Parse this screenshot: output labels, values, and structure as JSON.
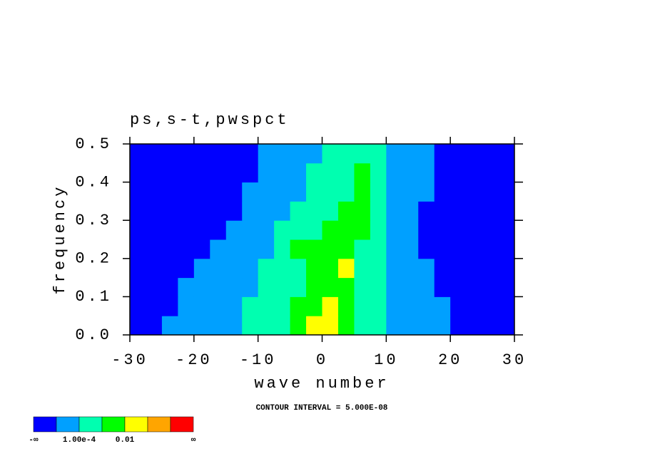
{
  "chart_data": {
    "type": "contour",
    "title": "ps,s-t,pwspct",
    "x_label": "wave number",
    "y_label": "frequency",
    "note": "CONTOUR INTERVAL = 5.000E-08",
    "xlim": [
      -30,
      30
    ],
    "ylim": [
      0,
      0.5
    ],
    "xticks": [
      -30,
      -20,
      -10,
      0,
      10,
      20,
      30
    ],
    "yticks": [
      {
        "value": 0,
        "label": "0.0"
      },
      0.1,
      0.2,
      0.3,
      0.4,
      0.5
    ],
    "colors": [
      "#0000ff",
      "#00a0ff",
      "#00ffb0",
      "#00ff00",
      "#ffff00",
      "#ffa500",
      "#ff0000"
    ],
    "colorbar_labels": [
      "-∞",
      null,
      "1.00e-4",
      null,
      "0.01",
      null,
      null,
      "∞"
    ],
    "z": [
      [
        0,
        0,
        1,
        1,
        1,
        1,
        1,
        2,
        2,
        2,
        3,
        4,
        4,
        3,
        2,
        2,
        1,
        1,
        1,
        1,
        0,
        0,
        0,
        0
      ],
      [
        0,
        0,
        0,
        1,
        1,
        1,
        1,
        2,
        2,
        2,
        3,
        3,
        4,
        3,
        2,
        2,
        1,
        1,
        1,
        1,
        0,
        0,
        0,
        0
      ],
      [
        0,
        0,
        0,
        1,
        1,
        1,
        1,
        1,
        2,
        2,
        2,
        3,
        3,
        3,
        2,
        2,
        1,
        1,
        1,
        0,
        0,
        0,
        0,
        0
      ],
      [
        0,
        0,
        0,
        0,
        1,
        1,
        1,
        1,
        2,
        2,
        2,
        3,
        3,
        4,
        2,
        2,
        1,
        1,
        1,
        0,
        0,
        0,
        0,
        0
      ],
      [
        0,
        0,
        0,
        0,
        0,
        1,
        1,
        1,
        1,
        2,
        3,
        3,
        3,
        3,
        2,
        2,
        1,
        1,
        0,
        0,
        0,
        0,
        0,
        0
      ],
      [
        0,
        0,
        0,
        0,
        0,
        0,
        1,
        1,
        1,
        2,
        2,
        2,
        3,
        3,
        3,
        2,
        1,
        1,
        0,
        0,
        0,
        0,
        0,
        0
      ],
      [
        0,
        0,
        0,
        0,
        0,
        0,
        0,
        1,
        1,
        1,
        2,
        2,
        2,
        3,
        3,
        2,
        1,
        1,
        0,
        0,
        0,
        0,
        0,
        0
      ],
      [
        0,
        0,
        0,
        0,
        0,
        0,
        0,
        1,
        1,
        1,
        1,
        2,
        2,
        2,
        3,
        2,
        1,
        1,
        1,
        0,
        0,
        0,
        0,
        0
      ],
      [
        0,
        0,
        0,
        0,
        0,
        0,
        0,
        0,
        1,
        1,
        1,
        2,
        2,
        2,
        3,
        2,
        1,
        1,
        1,
        0,
        0,
        0,
        0,
        0
      ],
      [
        0,
        0,
        0,
        0,
        0,
        0,
        0,
        0,
        1,
        1,
        1,
        1,
        2,
        2,
        2,
        2,
        1,
        1,
        1,
        0,
        0,
        0,
        0,
        0
      ]
    ]
  }
}
